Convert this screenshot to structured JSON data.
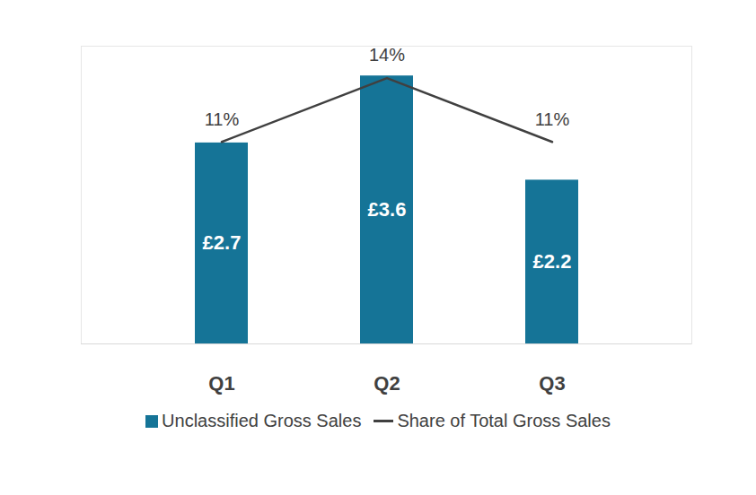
{
  "chart_data": {
    "type": "bar",
    "categories": [
      "Q1",
      "Q2",
      "Q3"
    ],
    "series": [
      {
        "name": "Unclassified Gross Sales",
        "type": "bar",
        "color": "#157497",
        "values": [
          2.7,
          3.6,
          2.2
        ],
        "value_labels": [
          "£2.7",
          "£3.6",
          "£2.2"
        ]
      },
      {
        "name": "Share of Total Gross Sales",
        "type": "line",
        "axis": "y2",
        "color": "#404040",
        "values": [
          11,
          14,
          11
        ],
        "value_labels": [
          "11%",
          "14%",
          "11%"
        ]
      }
    ],
    "ylim": [
      0,
      4
    ],
    "y2lim": [
      1.5,
      15.5
    ],
    "data_labels": true,
    "tick_labels": "x",
    "grid": false,
    "legend": "bottom"
  }
}
